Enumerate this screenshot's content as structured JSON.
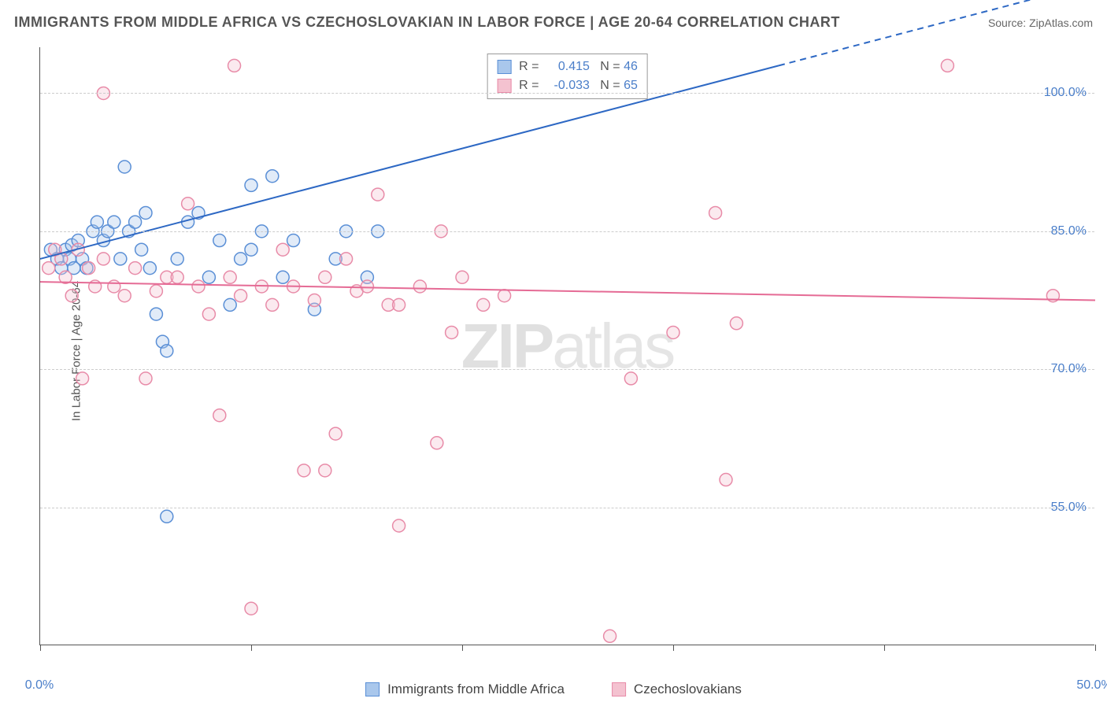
{
  "title": "IMMIGRANTS FROM MIDDLE AFRICA VS CZECHOSLOVAKIAN IN LABOR FORCE | AGE 20-64 CORRELATION CHART",
  "source": "Source: ZipAtlas.com",
  "ylabel": "In Labor Force | Age 20-64",
  "watermark_bold": "ZIP",
  "watermark_light": "atlas",
  "chart": {
    "type": "scatter",
    "xlim": [
      0,
      50
    ],
    "ylim": [
      40,
      105
    ],
    "xtick_positions": [
      0,
      10,
      20,
      30,
      40,
      50
    ],
    "xtick_labels": [
      "0.0%",
      "",
      "",
      "",
      "",
      "50.0%"
    ],
    "ytick_positions": [
      55,
      70,
      85,
      100
    ],
    "ytick_labels": [
      "55.0%",
      "70.0%",
      "85.0%",
      "100.0%"
    ],
    "grid_y_positions": [
      55,
      70,
      85,
      100
    ],
    "grid_color": "#cccccc",
    "background_color": "#ffffff",
    "axis_color": "#555555",
    "label_color": "#4a7ec9",
    "tick_fontsize": 16,
    "title_fontsize": 18,
    "ylabel_fontsize": 15,
    "marker_radius": 8,
    "line_width": 2
  },
  "series": [
    {
      "name": "Immigrants from Middle Africa",
      "color_fill": "#a9c7ec",
      "color_stroke": "#5a8fd6",
      "line_color": "#2d68c4",
      "R": "0.415",
      "N": "46",
      "trend": {
        "x1": 0,
        "y1": 82,
        "x2": 35,
        "y2": 103,
        "dashed_after_x": 35,
        "x3": 50,
        "y3": 112
      },
      "points": [
        [
          0.5,
          83
        ],
        [
          0.8,
          82
        ],
        [
          1.0,
          81
        ],
        [
          1.2,
          83
        ],
        [
          1.4,
          82
        ],
        [
          1.6,
          81
        ],
        [
          1.5,
          83.5
        ],
        [
          1.8,
          84
        ],
        [
          2.0,
          82
        ],
        [
          2.2,
          81
        ],
        [
          2.5,
          85
        ],
        [
          2.7,
          86
        ],
        [
          3.0,
          84
        ],
        [
          3.2,
          85
        ],
        [
          3.5,
          86
        ],
        [
          3.8,
          82
        ],
        [
          4.0,
          92
        ],
        [
          4.2,
          85
        ],
        [
          4.5,
          86
        ],
        [
          4.8,
          83
        ],
        [
          5.0,
          87
        ],
        [
          5.2,
          81
        ],
        [
          5.5,
          76
        ],
        [
          5.8,
          73
        ],
        [
          6.0,
          72
        ],
        [
          6.0,
          54
        ],
        [
          6.5,
          82
        ],
        [
          7.0,
          86
        ],
        [
          7.5,
          87
        ],
        [
          8.0,
          80
        ],
        [
          8.5,
          84
        ],
        [
          9.0,
          77
        ],
        [
          9.5,
          82
        ],
        [
          10.0,
          83
        ],
        [
          10.0,
          90
        ],
        [
          10.5,
          85
        ],
        [
          11.0,
          91
        ],
        [
          11.5,
          80
        ],
        [
          12.0,
          84
        ],
        [
          13.0,
          76.5
        ],
        [
          14.0,
          82
        ],
        [
          14.5,
          85
        ],
        [
          15.5,
          80
        ],
        [
          16.0,
          85
        ]
      ]
    },
    {
      "name": "Czechoslovakians",
      "color_fill": "#f4c2d0",
      "color_stroke": "#e88ba8",
      "line_color": "#e56b95",
      "R": "-0.033",
      "N": "65",
      "trend": {
        "x1": 0,
        "y1": 79.5,
        "x2": 50,
        "y2": 77.5
      },
      "points": [
        [
          0.4,
          81
        ],
        [
          0.7,
          83
        ],
        [
          1.0,
          82
        ],
        [
          1.2,
          80
        ],
        [
          1.5,
          78
        ],
        [
          1.8,
          83
        ],
        [
          2.0,
          69
        ],
        [
          2.3,
          81
        ],
        [
          2.6,
          79
        ],
        [
          3.0,
          100
        ],
        [
          3.0,
          82
        ],
        [
          3.5,
          79
        ],
        [
          4.0,
          78
        ],
        [
          4.5,
          81
        ],
        [
          5.0,
          69
        ],
        [
          5.5,
          78.5
        ],
        [
          6.0,
          80
        ],
        [
          6.5,
          80
        ],
        [
          7.0,
          88
        ],
        [
          7.5,
          79
        ],
        [
          8.0,
          76
        ],
        [
          8.5,
          65
        ],
        [
          9.0,
          80
        ],
        [
          9.2,
          103
        ],
        [
          9.5,
          78
        ],
        [
          10.0,
          44
        ],
        [
          10.5,
          79
        ],
        [
          11.0,
          77
        ],
        [
          11.5,
          83
        ],
        [
          12.0,
          79
        ],
        [
          12.5,
          59
        ],
        [
          13.0,
          77.5
        ],
        [
          13.5,
          59
        ],
        [
          13.5,
          80
        ],
        [
          14.0,
          63
        ],
        [
          14.5,
          82
        ],
        [
          15.0,
          78.5
        ],
        [
          15.5,
          79
        ],
        [
          16.0,
          89
        ],
        [
          16.5,
          77
        ],
        [
          17.0,
          53
        ],
        [
          17.0,
          77
        ],
        [
          18.0,
          79
        ],
        [
          18.8,
          62
        ],
        [
          19.0,
          85
        ],
        [
          19.5,
          74
        ],
        [
          20.0,
          80
        ],
        [
          21.0,
          77
        ],
        [
          22.0,
          78
        ],
        [
          27.0,
          41
        ],
        [
          28.0,
          69
        ],
        [
          30.0,
          74
        ],
        [
          32.0,
          87
        ],
        [
          32.5,
          58
        ],
        [
          33.0,
          75
        ],
        [
          43.0,
          103
        ],
        [
          48.0,
          78
        ]
      ]
    }
  ],
  "legend_top": {
    "r_label": "R =",
    "n_label": "N ="
  },
  "legend_bottom": {
    "items": [
      "Immigrants from Middle Africa",
      "Czechoslovakians"
    ]
  }
}
